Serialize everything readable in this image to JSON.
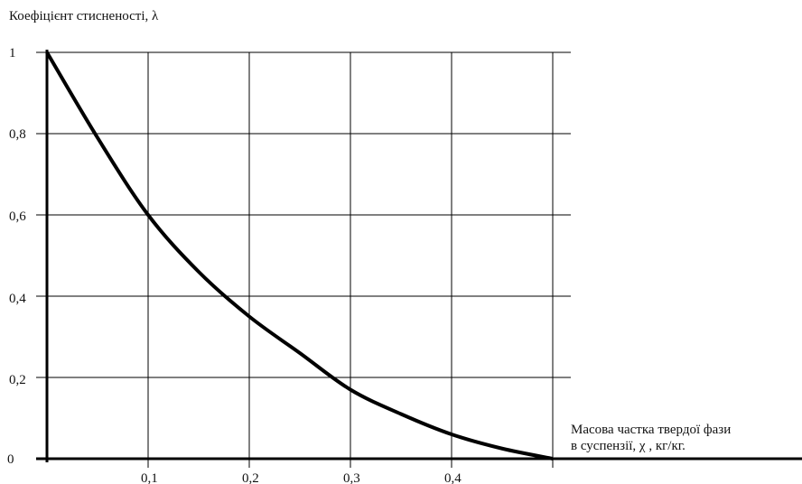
{
  "chart_data": {
    "type": "line",
    "ylabel": "Коефіцієнт стисненості, λ",
    "xlabel_line1": "Масова частка твердої фази",
    "xlabel_line2": "в суспензії, χ , кг/кг.",
    "x_ticks": [
      "0,1",
      "0,2",
      "0,3",
      "0,4"
    ],
    "y_ticks": [
      "0",
      "0,2",
      "0,4",
      "0,6",
      "0,8",
      "1"
    ],
    "xlim": [
      0,
      0.52
    ],
    "ylim": [
      0,
      1
    ],
    "grid": true,
    "series": [
      {
        "x": [
          0,
          0.05,
          0.1,
          0.15,
          0.2,
          0.25,
          0.3,
          0.35,
          0.4,
          0.45,
          0.5
        ],
        "y": [
          1.0,
          0.79,
          0.6,
          0.46,
          0.35,
          0.26,
          0.17,
          0.11,
          0.06,
          0.025,
          0.0
        ]
      }
    ]
  }
}
